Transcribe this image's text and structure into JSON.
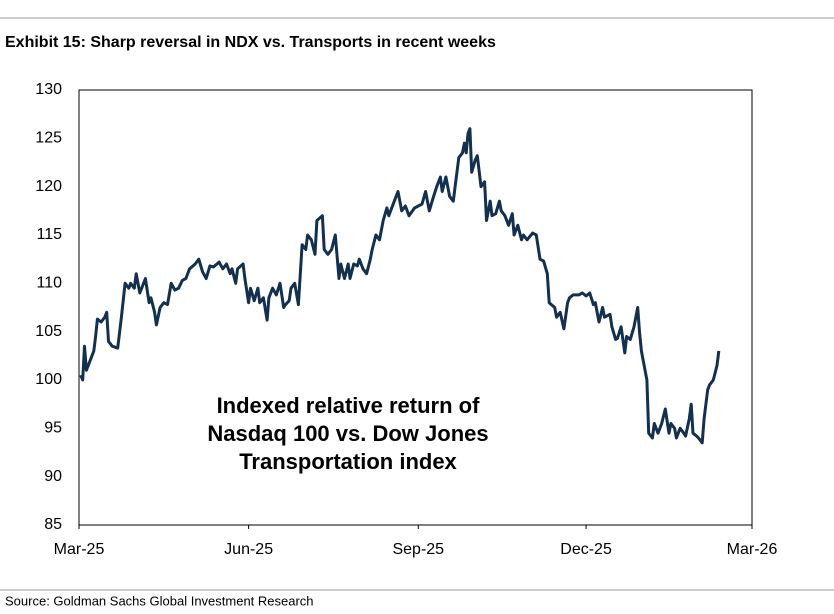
{
  "chart_data": {
    "type": "line",
    "title": "Exhibit 15: Sharp reversal in NDX vs. Transports in recent weeks",
    "annotation": [
      "Indexed relative return of",
      "Nasdaq 100 vs. Dow Jones",
      "Transportation index"
    ],
    "source": "Source: Goldman Sachs Global Investment Research",
    "xlim": [
      0,
      365
    ],
    "xticks": [
      {
        "value": 0,
        "label": "Mar-25"
      },
      {
        "value": 92,
        "label": "Jun-25"
      },
      {
        "value": 184,
        "label": "Sep-25"
      },
      {
        "value": 275,
        "label": "Dec-25"
      },
      {
        "value": 365,
        "label": "Mar-26"
      }
    ],
    "ylim": [
      85,
      130
    ],
    "yticks": [
      85,
      90,
      95,
      100,
      105,
      110,
      115,
      120,
      125,
      130
    ],
    "grid": false,
    "x": [
      1,
      2,
      3,
      4,
      6,
      8,
      9,
      10,
      12,
      14,
      15,
      16,
      18,
      21,
      23,
      25,
      27,
      28,
      30,
      31,
      33,
      34,
      36,
      38,
      39,
      41,
      42,
      44,
      46,
      48,
      50,
      52,
      54,
      56,
      58,
      60,
      63,
      65,
      67,
      69,
      71,
      73,
      76,
      78,
      80,
      82,
      83,
      85,
      86,
      89,
      90,
      92,
      93,
      95,
      97,
      98,
      100,
      102,
      103,
      105,
      107,
      109,
      111,
      112,
      114,
      115,
      117,
      119,
      121,
      123,
      124,
      126,
      128,
      129,
      132,
      133,
      135,
      137,
      139,
      141,
      142,
      144,
      146,
      147,
      149,
      151,
      152,
      154,
      156,
      158,
      159,
      161,
      163,
      165,
      167,
      168,
      171,
      173,
      175,
      177,
      179,
      182,
      184,
      186,
      188,
      190,
      192,
      194,
      196,
      197,
      199,
      201,
      203,
      204,
      206,
      208,
      209,
      210,
      211,
      212,
      213,
      215,
      216,
      218,
      220,
      221,
      223,
      224,
      226,
      228,
      229,
      231,
      233,
      235,
      236,
      238,
      240,
      241,
      243,
      246,
      248,
      250,
      252,
      254,
      255,
      258,
      259,
      261,
      263,
      265,
      266,
      268,
      271,
      273,
      275,
      277,
      279,
      280,
      282,
      284,
      285,
      288,
      289,
      291,
      292,
      294,
      296,
      297,
      299,
      301,
      303,
      304,
      305,
      308,
      309,
      311,
      312,
      314,
      316,
      318,
      320,
      321,
      323,
      324,
      326,
      328,
      329,
      331,
      332,
      333,
      335,
      336,
      338,
      339,
      341,
      342,
      344,
      346,
      347
    ],
    "series": [
      {
        "name": "NDX vs. Transports",
        "color": "#13304f",
        "values": [
          100.5,
          100,
          103.5,
          101,
          102,
          103,
          104.5,
          106.3,
          106,
          106.5,
          107,
          104,
          103.5,
          103.3,
          106.5,
          110,
          109.5,
          110,
          109.5,
          111,
          109,
          109.5,
          110.5,
          108,
          108.5,
          107,
          105.7,
          107.5,
          108,
          107.8,
          110,
          109.3,
          109.5,
          110.3,
          110.5,
          111.5,
          112,
          112.5,
          111.2,
          110.5,
          111.8,
          111.7,
          112.2,
          111.5,
          112,
          111,
          111.5,
          110,
          111.5,
          112,
          110.5,
          108,
          109.5,
          108.2,
          109.5,
          108,
          108.5,
          106.2,
          108.5,
          109.5,
          108.8,
          110,
          107.5,
          107.8,
          108.2,
          109.5,
          110,
          107.8,
          114,
          113.5,
          115,
          114.5,
          113,
          116.5,
          117,
          113.5,
          113,
          113.5,
          115,
          110.5,
          112,
          110.5,
          112,
          110.5,
          112,
          111.8,
          112.5,
          111.5,
          111,
          112.5,
          113.5,
          115,
          114.5,
          116.5,
          117.8,
          117,
          118.5,
          119.5,
          117.5,
          118,
          117,
          117.8,
          118,
          118.2,
          119.5,
          117.5,
          118.8,
          120,
          121,
          119.5,
          121,
          119,
          118.5,
          120,
          123,
          123.5,
          124.5,
          123.5,
          125.5,
          126,
          121.5,
          122.8,
          123.2,
          120,
          120.5,
          116.5,
          118.5,
          117,
          117.2,
          118.5,
          117.5,
          117,
          116,
          117.2,
          115,
          116,
          114.5,
          115,
          114.5,
          115.2,
          115,
          112.5,
          112.3,
          111,
          108,
          107.5,
          106.5,
          107,
          105.3,
          108,
          108.5,
          108.8,
          108.8,
          109,
          108.7,
          109,
          107.8,
          108,
          106,
          107.5,
          106.5,
          106.8,
          105.5,
          104.2,
          104.3,
          105.5,
          102.8,
          104.5,
          104.2,
          105.5,
          107.5,
          105,
          103,
          100,
          94.5,
          94,
          95.5,
          94.5,
          95.5,
          97,
          94.5,
          95.5,
          95,
          94,
          95,
          94.5,
          94.2,
          96,
          97.5,
          94.5,
          94.2,
          94,
          93.5,
          96,
          99,
          99.5,
          100,
          101.5,
          103
        ]
      }
    ]
  }
}
